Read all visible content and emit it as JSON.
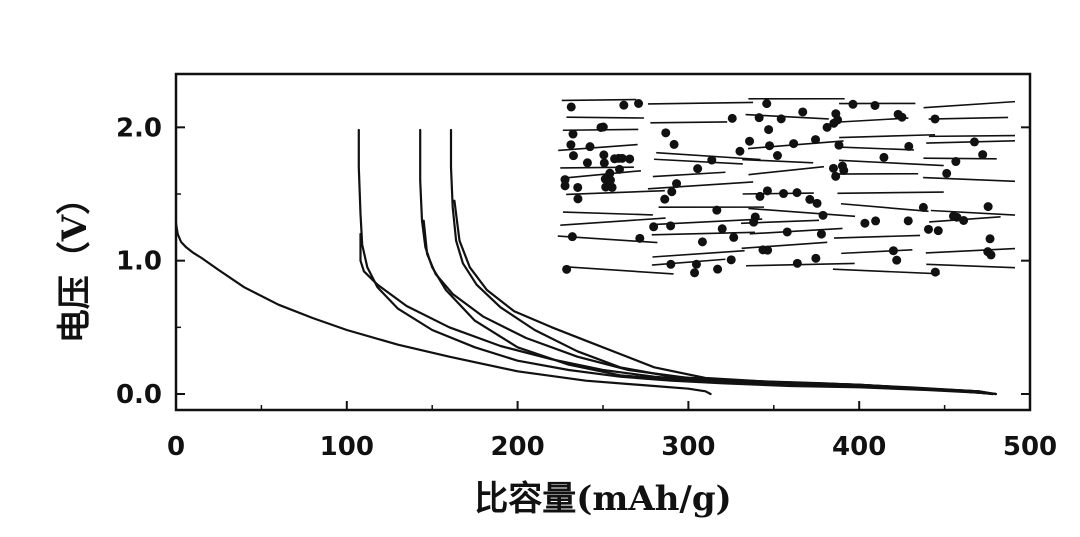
{
  "chart_data": {
    "type": "line",
    "title": "",
    "xlabel": "比容量(mAh/g)",
    "ylabel": "电压（V）",
    "xlim": [
      0,
      500
    ],
    "ylim": [
      -0.12,
      2.4
    ],
    "xticks": [
      0,
      100,
      200,
      300,
      400,
      500
    ],
    "xtick_labels": [
      "0",
      "100",
      "200",
      "300",
      "400",
      "500"
    ],
    "yticks": [
      0.0,
      1.0,
      2.0
    ],
    "ytick_labels": [
      "0.0",
      "1.0",
      "2.0"
    ],
    "grid": false,
    "legend": false,
    "series": [
      {
        "x": [
          0,
          1,
          3,
          6,
          10,
          15,
          25,
          40,
          60,
          80,
          100,
          130,
          160,
          200,
          240,
          280,
          300,
          310,
          313
        ],
        "y": [
          1.28,
          1.2,
          1.14,
          1.1,
          1.06,
          1.02,
          0.93,
          0.8,
          0.67,
          0.57,
          0.48,
          0.37,
          0.28,
          0.17,
          0.1,
          0.06,
          0.04,
          0.02,
          0.0
        ]
      },
      {
        "x": [
          107,
          107,
          108,
          109,
          112,
          118,
          130,
          150,
          175,
          200,
          230,
          260,
          290,
          320,
          360,
          400,
          440,
          470,
          478
        ],
        "y": [
          1.98,
          1.7,
          1.35,
          1.12,
          0.95,
          0.8,
          0.64,
          0.48,
          0.35,
          0.25,
          0.18,
          0.13,
          0.1,
          0.08,
          0.06,
          0.05,
          0.03,
          0.01,
          0.0
        ]
      },
      {
        "x": [
          108,
          108,
          110,
          118,
          135,
          160,
          190,
          220,
          250,
          280,
          310,
          350,
          400,
          440,
          470,
          480
        ],
        "y": [
          1.2,
          1.0,
          0.92,
          0.82,
          0.66,
          0.5,
          0.36,
          0.26,
          0.18,
          0.13,
          0.1,
          0.08,
          0.06,
          0.04,
          0.02,
          0.0
        ]
      },
      {
        "x": [
          143,
          143,
          144,
          146,
          150,
          158,
          175,
          200,
          230,
          260,
          300,
          350,
          400,
          440,
          470,
          478
        ],
        "y": [
          1.98,
          1.6,
          1.3,
          1.1,
          0.95,
          0.78,
          0.55,
          0.35,
          0.22,
          0.14,
          0.1,
          0.08,
          0.06,
          0.04,
          0.02,
          0.0
        ]
      },
      {
        "x": [
          145,
          147,
          152,
          162,
          180,
          205,
          235,
          265,
          300,
          350,
          400,
          450,
          480
        ],
        "y": [
          1.3,
          1.05,
          0.9,
          0.75,
          0.58,
          0.42,
          0.28,
          0.18,
          0.12,
          0.09,
          0.07,
          0.03,
          0.0
        ]
      },
      {
        "x": [
          161,
          161,
          162,
          164,
          168,
          176,
          190,
          210,
          235,
          260,
          290,
          330,
          380,
          430,
          470,
          478
        ],
        "y": [
          1.98,
          1.7,
          1.4,
          1.15,
          0.98,
          0.82,
          0.65,
          0.48,
          0.32,
          0.2,
          0.13,
          0.1,
          0.08,
          0.05,
          0.02,
          0.0
        ]
      },
      {
        "x": [
          163,
          166,
          172,
          182,
          198,
          220,
          240,
          260,
          280,
          310,
          350,
          400,
          450,
          480
        ],
        "y": [
          1.45,
          1.15,
          0.95,
          0.78,
          0.62,
          0.5,
          0.4,
          0.3,
          0.2,
          0.12,
          0.09,
          0.07,
          0.03,
          0.0
        ]
      }
    ],
    "inset": "layered carbon schematic (horizontal line segments with scattered dots)"
  }
}
